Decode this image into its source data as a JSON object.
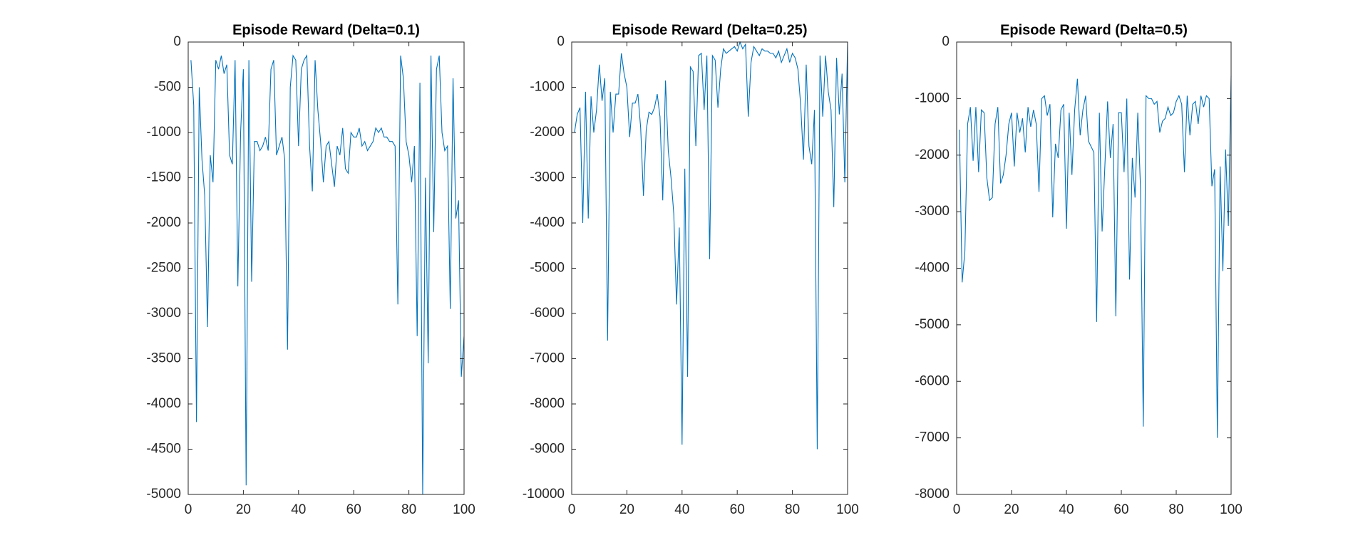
{
  "chart_data": [
    {
      "type": "line",
      "title": "Episode Reward (Delta=0.1)",
      "x": [
        1,
        2,
        3,
        4,
        5,
        6,
        7,
        8,
        9,
        10,
        11,
        12,
        13,
        14,
        15,
        16,
        17,
        18,
        19,
        20,
        21,
        22,
        23,
        24,
        25,
        26,
        27,
        28,
        29,
        30,
        31,
        32,
        33,
        34,
        35,
        36,
        37,
        38,
        39,
        40,
        41,
        42,
        43,
        44,
        45,
        46,
        47,
        48,
        49,
        50,
        51,
        52,
        53,
        54,
        55,
        56,
        57,
        58,
        59,
        60,
        61,
        62,
        63,
        64,
        65,
        66,
        67,
        68,
        69,
        70,
        71,
        72,
        73,
        74,
        75,
        76,
        77,
        78,
        79,
        80,
        81,
        82,
        83,
        84,
        85,
        86,
        87,
        88,
        89,
        90,
        91,
        92,
        93,
        94,
        95,
        96,
        97,
        98,
        99,
        100
      ],
      "series": [
        {
          "name": "Reward",
          "color": "#0072bd",
          "values": [
            -200,
            -700,
            -4200,
            -500,
            -1300,
            -1700,
            -3150,
            -1250,
            -1550,
            -200,
            -300,
            -150,
            -350,
            -250,
            -1250,
            -1350,
            -200,
            -2700,
            -1000,
            -300,
            -4900,
            -200,
            -2650,
            -1100,
            -1100,
            -1200,
            -1150,
            -1050,
            -1200,
            -300,
            -200,
            -1250,
            -1150,
            -1050,
            -1300,
            -3400,
            -500,
            -150,
            -200,
            -1150,
            -300,
            -200,
            -150,
            -1150,
            -1650,
            -200,
            -750,
            -1100,
            -1550,
            -1150,
            -1100,
            -1350,
            -1600,
            -1150,
            -1250,
            -950,
            -1400,
            -1450,
            -1000,
            -1050,
            -1050,
            -950,
            -1150,
            -1100,
            -1200,
            -1150,
            -1100,
            -950,
            -1000,
            -950,
            -1050,
            -1050,
            -1100,
            -1100,
            -1150,
            -2900,
            -150,
            -400,
            -1100,
            -1250,
            -1550,
            -1150,
            -3250,
            -450,
            -5000,
            -1500,
            -3550,
            -150,
            -2100,
            -300,
            -150,
            -1000,
            -1200,
            -1150,
            -2950,
            -400,
            -1950,
            -1750,
            -3700,
            -3250
          ]
        }
      ],
      "xlim": [
        0,
        100
      ],
      "xticks": [
        0,
        20,
        40,
        60,
        80,
        100
      ],
      "ylim": [
        -5000,
        0
      ],
      "yticks": [
        0,
        -500,
        -1000,
        -1500,
        -2000,
        -2500,
        -3000,
        -3500,
        -4000,
        -4500,
        -5000
      ]
    },
    {
      "type": "line",
      "title": "Episode Reward (Delta=0.25)",
      "x": [
        1,
        2,
        3,
        4,
        5,
        6,
        7,
        8,
        9,
        10,
        11,
        12,
        13,
        14,
        15,
        16,
        17,
        18,
        19,
        20,
        21,
        22,
        23,
        24,
        25,
        26,
        27,
        28,
        29,
        30,
        31,
        32,
        33,
        34,
        35,
        36,
        37,
        38,
        39,
        40,
        41,
        42,
        43,
        44,
        45,
        46,
        47,
        48,
        49,
        50,
        51,
        52,
        53,
        54,
        55,
        56,
        57,
        58,
        59,
        60,
        61,
        62,
        63,
        64,
        65,
        66,
        67,
        68,
        69,
        70,
        71,
        72,
        73,
        74,
        75,
        76,
        77,
        78,
        79,
        80,
        81,
        82,
        83,
        84,
        85,
        86,
        87,
        88,
        89,
        90,
        91,
        92,
        93,
        94,
        95,
        96,
        97,
        98,
        99,
        100
      ],
      "series": [
        {
          "name": "Reward",
          "color": "#0072bd",
          "values": [
            -2000,
            -1600,
            -1450,
            -4000,
            -1100,
            -3900,
            -1200,
            -2000,
            -1500,
            -500,
            -1300,
            -800,
            -6600,
            -1100,
            -2000,
            -1150,
            -1150,
            -250,
            -700,
            -1000,
            -2100,
            -1350,
            -1350,
            -1150,
            -1900,
            -3400,
            -1950,
            -1550,
            -1600,
            -1450,
            -1150,
            -1650,
            -3500,
            -850,
            -2400,
            -3000,
            -3800,
            -5800,
            -4100,
            -8900,
            -2800,
            -7400,
            -550,
            -650,
            -2300,
            -300,
            -250,
            -1500,
            -300,
            -4800,
            -300,
            -400,
            -1450,
            -600,
            -150,
            -250,
            -200,
            -150,
            -100,
            -200,
            0,
            -150,
            -50,
            -1650,
            -450,
            -100,
            -200,
            -300,
            -150,
            -200,
            -200,
            -250,
            -250,
            -350,
            -200,
            -450,
            -300,
            -150,
            -450,
            -250,
            -350,
            -600,
            -1400,
            -2600,
            -500,
            -2300,
            -2700,
            -1500,
            -9000,
            -300,
            -1650,
            -300,
            -1100,
            -1500,
            -3650,
            -350,
            -1600,
            -700,
            -3100,
            0
          ]
        }
      ],
      "xlim": [
        0,
        100
      ],
      "xticks": [
        0,
        20,
        40,
        60,
        80,
        100
      ],
      "ylim": [
        -10000,
        0
      ],
      "yticks": [
        0,
        -1000,
        -2000,
        -3000,
        -4000,
        -5000,
        -6000,
        -7000,
        -8000,
        -9000,
        -10000
      ]
    },
    {
      "type": "line",
      "title": "Episode Reward (Delta=0.5)",
      "x": [
        1,
        2,
        3,
        4,
        5,
        6,
        7,
        8,
        9,
        10,
        11,
        12,
        13,
        14,
        15,
        16,
        17,
        18,
        19,
        20,
        21,
        22,
        23,
        24,
        25,
        26,
        27,
        28,
        29,
        30,
        31,
        32,
        33,
        34,
        35,
        36,
        37,
        38,
        39,
        40,
        41,
        42,
        43,
        44,
        45,
        46,
        47,
        48,
        49,
        50,
        51,
        52,
        53,
        54,
        55,
        56,
        57,
        58,
        59,
        60,
        61,
        62,
        63,
        64,
        65,
        66,
        67,
        68,
        69,
        70,
        71,
        72,
        73,
        74,
        75,
        76,
        77,
        78,
        79,
        80,
        81,
        82,
        83,
        84,
        85,
        86,
        87,
        88,
        89,
        90,
        91,
        92,
        93,
        94,
        95,
        96,
        97,
        98,
        99,
        100
      ],
      "series": [
        {
          "name": "Reward",
          "color": "#0072bd",
          "values": [
            -1550,
            -4250,
            -3700,
            -1450,
            -1150,
            -2100,
            -1150,
            -2300,
            -1200,
            -1250,
            -2400,
            -2800,
            -2750,
            -1450,
            -1150,
            -2500,
            -2350,
            -2000,
            -1450,
            -1250,
            -2200,
            -1250,
            -1600,
            -1350,
            -1950,
            -1150,
            -1500,
            -1200,
            -1450,
            -2650,
            -1000,
            -950,
            -1300,
            -1100,
            -3100,
            -1800,
            -2050,
            -1200,
            -1100,
            -3300,
            -1250,
            -2350,
            -1200,
            -650,
            -1650,
            -1200,
            -950,
            -1750,
            -1850,
            -1950,
            -4950,
            -1250,
            -3350,
            -2200,
            -1050,
            -2050,
            -1450,
            -4850,
            -1250,
            -1250,
            -2300,
            -1000,
            -4200,
            -2050,
            -2750,
            -1250,
            -2600,
            -6800,
            -950,
            -1000,
            -1000,
            -1100,
            -1050,
            -1600,
            -1400,
            -1350,
            -1150,
            -1300,
            -1250,
            -1050,
            -950,
            -1100,
            -2300,
            -950,
            -1650,
            -1100,
            -1050,
            -1450,
            -950,
            -1150,
            -950,
            -1000,
            -2550,
            -2250,
            -7000,
            -2200,
            -4050,
            -1900,
            -3250,
            -600
          ]
        }
      ],
      "xlim": [
        0,
        100
      ],
      "xticks": [
        0,
        20,
        40,
        60,
        80,
        100
      ],
      "ylim": [
        -8000,
        0
      ],
      "yticks": [
        0,
        -1000,
        -2000,
        -3000,
        -4000,
        -5000,
        -6000,
        -7000,
        -8000
      ]
    }
  ]
}
